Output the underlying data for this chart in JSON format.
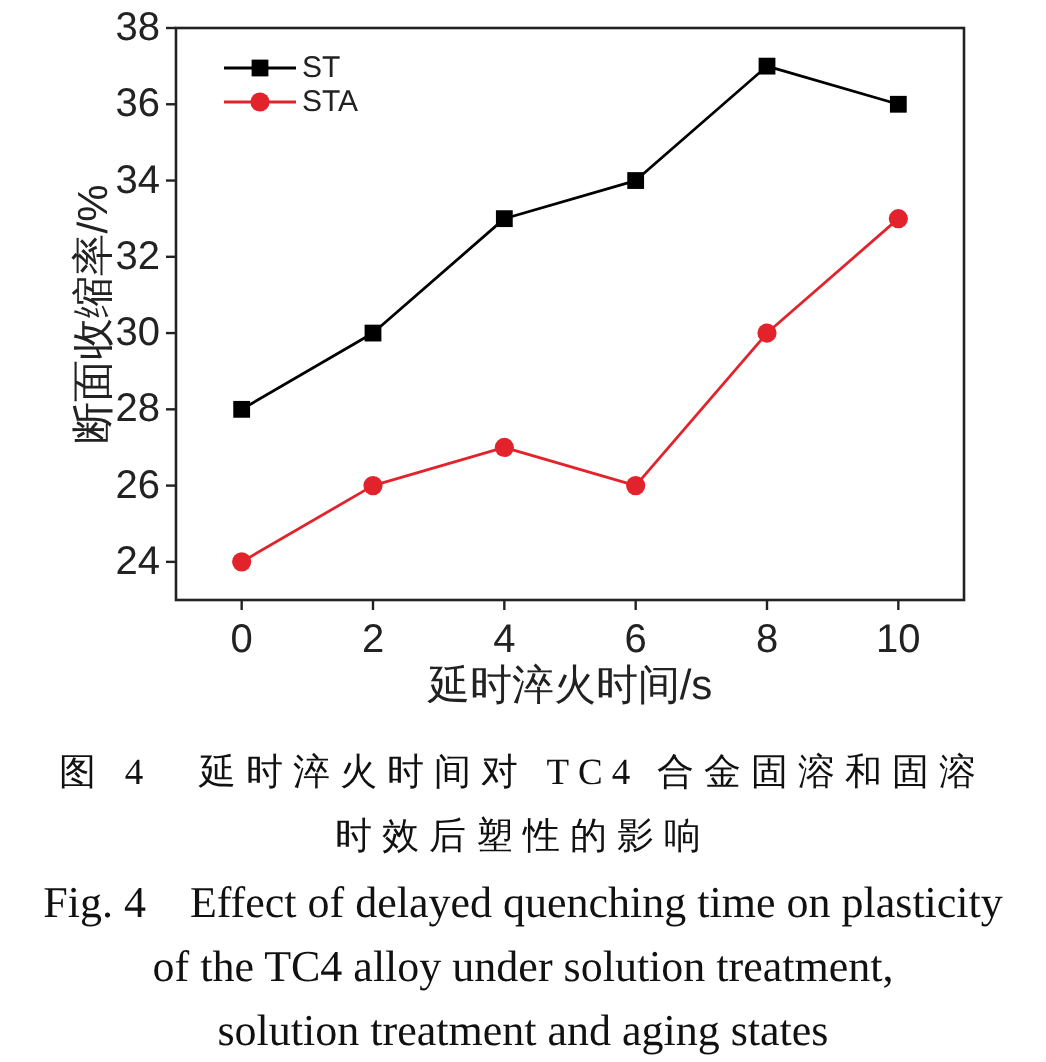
{
  "chart_data": {
    "type": "line",
    "xlabel": "延时淬火时间/s",
    "ylabel": "断面收缩率/%",
    "x": [
      0,
      2,
      4,
      6,
      8,
      10
    ],
    "xlim": [
      -1,
      11
    ],
    "xticks": [
      0,
      2,
      4,
      6,
      8,
      10
    ],
    "ylim": [
      23,
      38
    ],
    "yticks": [
      24,
      26,
      28,
      30,
      32,
      34,
      36,
      38
    ],
    "series": [
      {
        "name": "ST",
        "color": "#000000",
        "marker": "square",
        "values": [
          28,
          30,
          33,
          34,
          37,
          36
        ]
      },
      {
        "name": "STA",
        "color": "#e3232b",
        "marker": "circle",
        "values": [
          24,
          26,
          27,
          26,
          30,
          33
        ]
      }
    ],
    "legend": "top left",
    "grid": false,
    "line_style": "solid",
    "annotations": [
      "图 4　延时淬火时间对 TC4 合金固溶和固溶",
      "时效后塑性的影响",
      "Fig. 4　Effect of delayed quenching time on plasticity",
      "of the TC4 alloy under solution treatment,",
      "solution treatment and aging states"
    ]
  }
}
